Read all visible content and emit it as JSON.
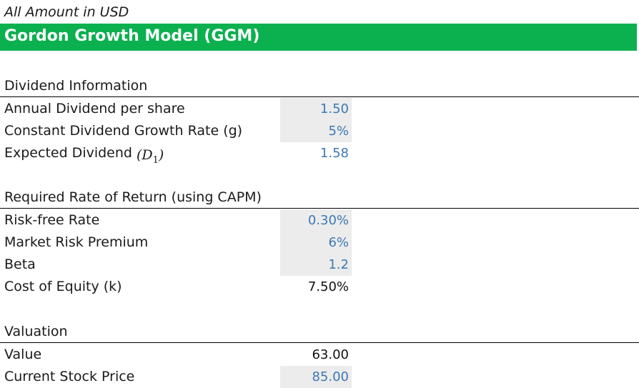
{
  "header": {
    "unit_note": "All Amount in USD",
    "title": "Gordon Growth Model (GGM)"
  },
  "dividend_section": {
    "heading": "Dividend Information",
    "rows": [
      {
        "label": "Annual Dividend per share",
        "value": "1.50"
      },
      {
        "label": "Constant Dividend Growth Rate (g)",
        "value": "5%"
      },
      {
        "label": "Expected Dividend",
        "symbol": "D",
        "subscript": "1",
        "value": "1.58"
      }
    ]
  },
  "return_section": {
    "heading": "Required Rate of Return  (using CAPM)",
    "rows": [
      {
        "label": "Risk-free Rate",
        "value": "0.30%"
      },
      {
        "label": "Market Risk Premium",
        "value": "6%"
      },
      {
        "label": "Beta",
        "value": "1.2"
      },
      {
        "label": "Cost of Equity (k)",
        "value": "7.50%"
      }
    ]
  },
  "valuation_section": {
    "heading": "Valuation",
    "rows": [
      {
        "label": "Value",
        "value": "63.00"
      },
      {
        "label": "Current Stock Price",
        "value": "85.00"
      }
    ]
  },
  "colors": {
    "title_bar": "#0bb04f",
    "input_fill": "#ececec",
    "input_text": "#3d78b4"
  }
}
